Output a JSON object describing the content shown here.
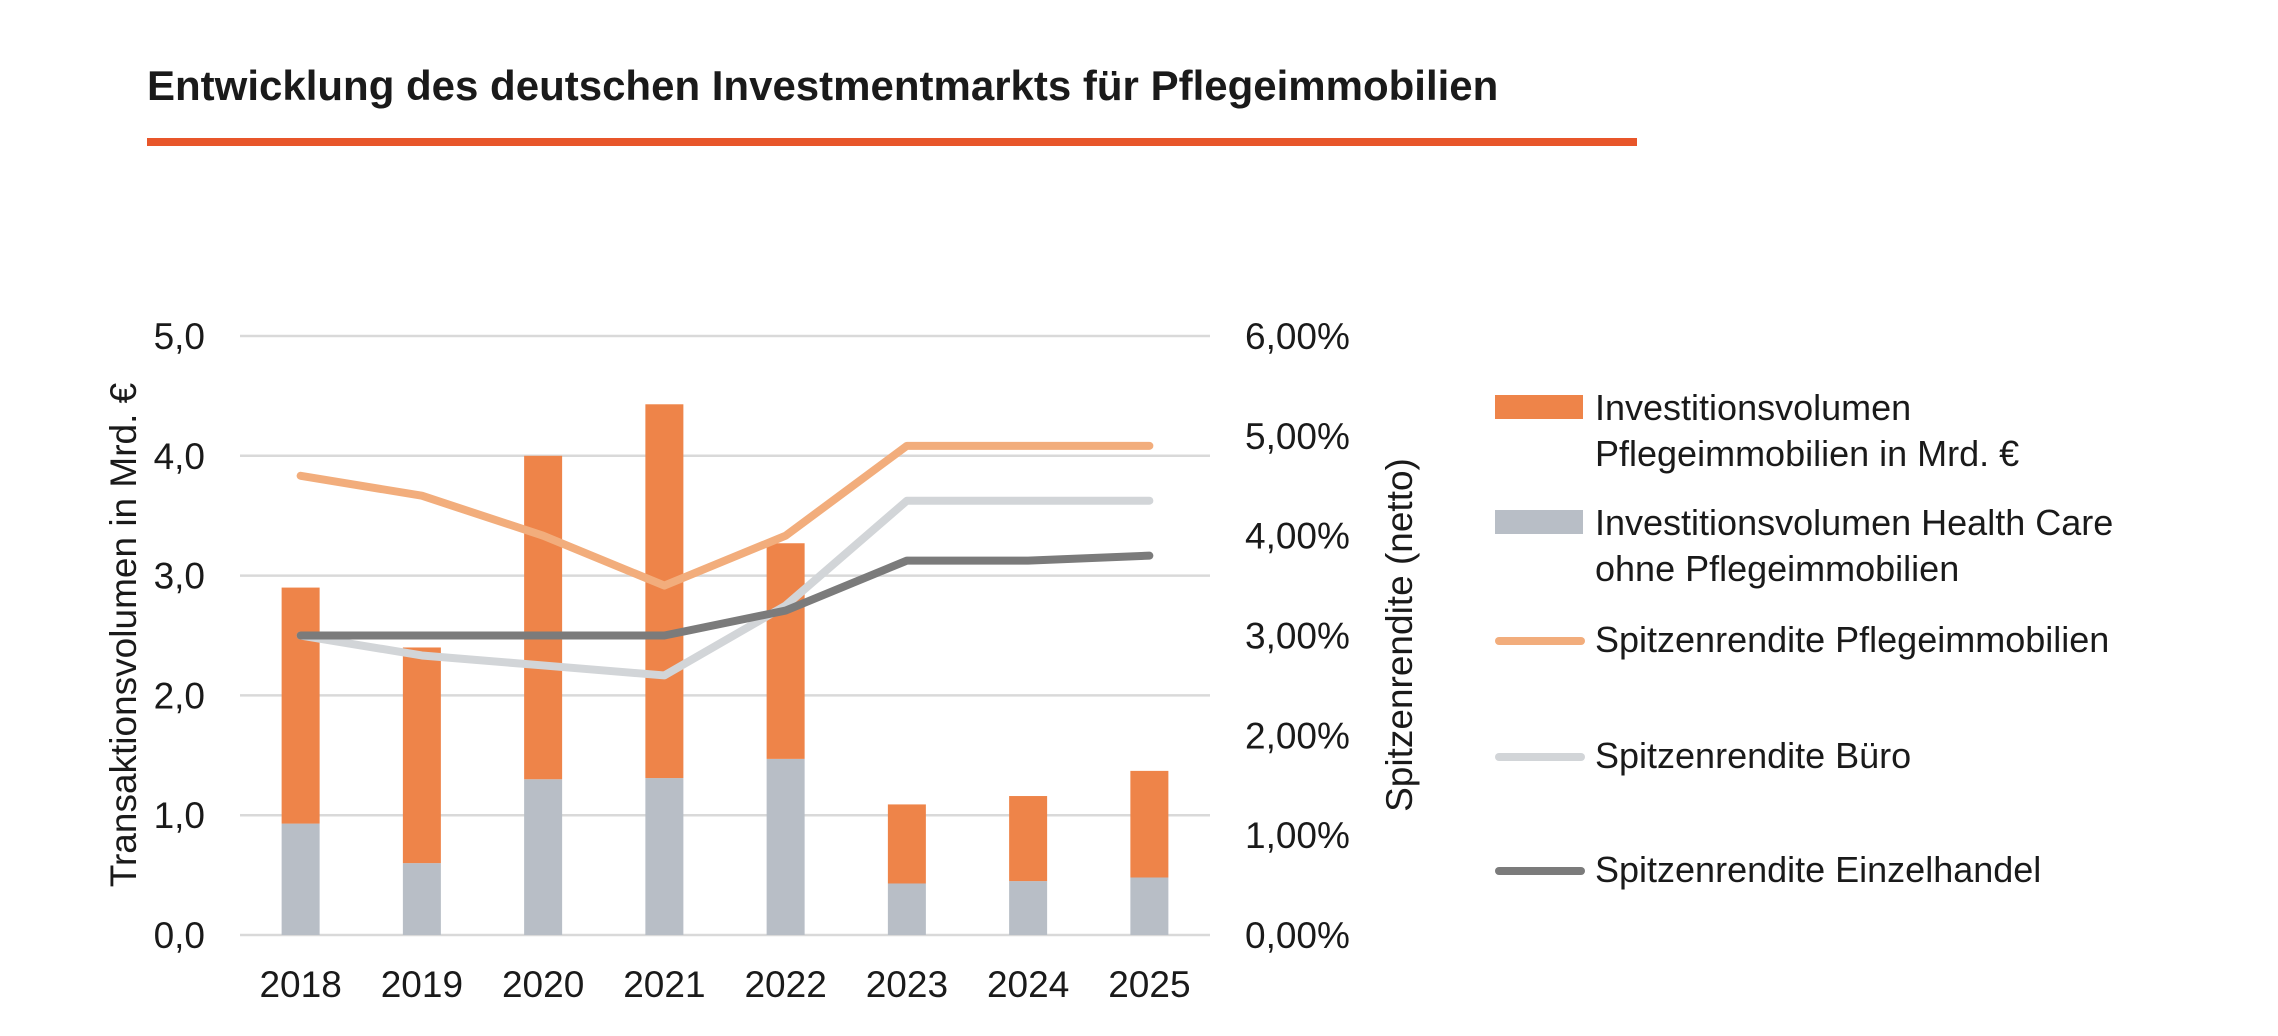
{
  "title": "Entwicklung des deutschen Investmentmarkts für Pflegeimmobilien",
  "colors": {
    "accent_rule": "#e8562a",
    "bar_pflege": "#ee8449",
    "bar_health": "#b8bec6",
    "line_pflege": "#f2ad7c",
    "line_buero": "#d2d5d8",
    "line_einzelhandel": "#7b7b7b",
    "grid": "#d9d9d9",
    "text": "#1a1a1a"
  },
  "legend": [
    {
      "key": "bar_pflege",
      "kind": "bar",
      "lines": [
        "Investitionsvolumen",
        "Pflegeimmobilien in Mrd. €"
      ]
    },
    {
      "key": "bar_health",
      "kind": "bar",
      "lines": [
        "Investitionsvolumen Health Care",
        "ohne Pflegeimmobilien"
      ]
    },
    {
      "key": "line_pflege",
      "kind": "line",
      "lines": [
        "Spitzenrendite Pflegeimmobilien"
      ]
    },
    {
      "key": "line_buero",
      "kind": "line",
      "lines": [
        "Spitzenrendite Büro"
      ]
    },
    {
      "key": "line_einzelhandel",
      "kind": "line",
      "lines": [
        "Spitzenrendite Einzelhandel"
      ]
    }
  ],
  "chart_data": {
    "type": "bar",
    "title": "Entwicklung des deutschen Investmentmarkts für Pflegeimmobilien",
    "categories": [
      "2018",
      "2019",
      "2020",
      "2021",
      "2022",
      "2023",
      "2024",
      "2025"
    ],
    "ylabel": "Transaktionsvolumen in Mrd. €",
    "y2label": "Spitzenrendite (netto)",
    "ylim": [
      0,
      5
    ],
    "y2lim": [
      0,
      6
    ],
    "yticks": [
      "0,0",
      "1,0",
      "2,0",
      "3,0",
      "4,0",
      "5,0"
    ],
    "y2ticks": [
      "0,00%",
      "1,00%",
      "2,00%",
      "3,00%",
      "4,00%",
      "5,00%",
      "6,00%"
    ],
    "grid": true,
    "legend_position": "right",
    "stacked_bars": [
      {
        "name": "Investitionsvolumen Health Care ohne Pflegeimmobilien",
        "color_key": "bar_health",
        "values": [
          0.93,
          0.6,
          1.3,
          1.31,
          1.47,
          0.43,
          0.45,
          0.48
        ]
      },
      {
        "name": "Investitionsvolumen Pflegeimmobilien in Mrd. €",
        "color_key": "bar_pflege",
        "values": [
          1.97,
          1.8,
          2.7,
          3.12,
          1.8,
          0.66,
          0.71,
          0.89
        ]
      }
    ],
    "line_series": [
      {
        "name": "Spitzenrendite Büro",
        "color_key": "line_buero",
        "values": [
          3.0,
          2.8,
          2.7,
          2.6,
          3.3,
          4.35,
          4.35,
          4.35
        ]
      },
      {
        "name": "Spitzenrendite Einzelhandel",
        "color_key": "line_einzelhandel",
        "values": [
          3.0,
          3.0,
          3.0,
          3.0,
          3.25,
          3.75,
          3.75,
          3.8
        ]
      },
      {
        "name": "Spitzenrendite Pflegeimmobilien",
        "color_key": "line_pflege",
        "values": [
          4.6,
          4.4,
          4.0,
          3.5,
          4.0,
          4.9,
          4.9,
          4.9
        ]
      }
    ]
  }
}
